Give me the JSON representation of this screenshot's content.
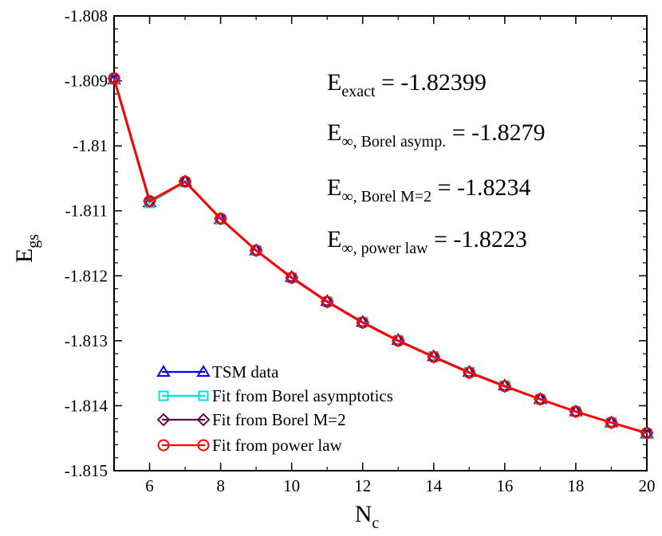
{
  "chart_data": {
    "type": "line",
    "x": [
      5,
      6,
      7,
      8,
      9,
      10,
      11,
      12,
      13,
      14,
      15,
      16,
      17,
      18,
      19,
      20
    ],
    "series": [
      {
        "name": "TSM data",
        "color": "#0000ff",
        "marker": "triangle",
        "values": [
          -1.80898,
          -1.81087,
          -1.81055,
          -1.81113,
          -1.81161,
          -1.81202,
          -1.81239,
          -1.81271,
          -1.81299,
          -1.81324,
          -1.81348,
          -1.81369,
          -1.8139,
          -1.81409,
          -1.81426,
          -1.81443
        ]
      },
      {
        "name": "Fit from Borel asymptotics",
        "color": "#00e0e0",
        "marker": "square",
        "values": [
          -1.80897,
          -1.81088,
          -1.81056,
          -1.81113,
          -1.81161,
          -1.81203,
          -1.8124,
          -1.81271,
          -1.81299,
          -1.81324,
          -1.81348,
          -1.81369,
          -1.8139,
          -1.81409,
          -1.81426,
          -1.81443
        ]
      },
      {
        "name": "Fit from Borel M=2",
        "color": "#5a1040",
        "marker": "diamond",
        "values": [
          -1.80896,
          -1.81085,
          -1.81055,
          -1.81112,
          -1.81161,
          -1.81203,
          -1.8124,
          -1.81272,
          -1.813,
          -1.81325,
          -1.81349,
          -1.8137,
          -1.8139,
          -1.81409,
          -1.81426,
          -1.81442
        ]
      },
      {
        "name": "Fit from power law",
        "color": "#ff0000",
        "marker": "circle",
        "values": [
          -1.80896,
          -1.81085,
          -1.81055,
          -1.81112,
          -1.81161,
          -1.81203,
          -1.8124,
          -1.81272,
          -1.813,
          -1.81325,
          -1.81349,
          -1.8137,
          -1.8139,
          -1.81409,
          -1.81426,
          -1.81442
        ]
      }
    ],
    "xlim": [
      5,
      20
    ],
    "ylim": [
      -1.815,
      -1.808
    ],
    "xticks": [
      "6",
      "8",
      "10",
      "12",
      "14",
      "16",
      "18",
      "20"
    ],
    "yticks": [
      "-1.808",
      "-1.809",
      "-1.81",
      "-1.811",
      "-1.812",
      "-1.813",
      "-1.814",
      "-1.815"
    ],
    "xlabel": {
      "main": "N",
      "sub": "c"
    },
    "ylabel": {
      "main": "E",
      "sub": "gs"
    },
    "annotations": [
      {
        "main": "E",
        "sub": "exact",
        "value": "= -1.82399"
      },
      {
        "main": "E",
        "sub": "∞, Borel asymp.",
        "value": "= -1.8279"
      },
      {
        "main": "E",
        "sub": "∞, Borel M=2",
        "value": "= -1.8234"
      },
      {
        "main": "E",
        "sub": "∞, power law",
        "value": "= -1.8223"
      }
    ],
    "legend_position": "bottom-left",
    "grid": false
  }
}
